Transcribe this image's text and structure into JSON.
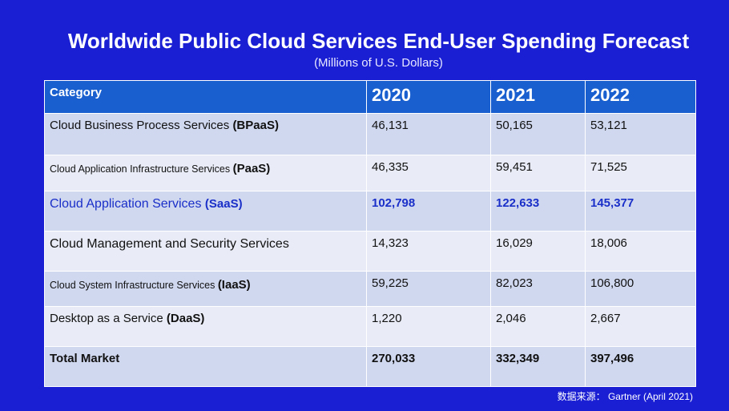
{
  "title": "Worldwide Public Cloud Services End-User Spending Forecast",
  "subtitle": "(Millions of U.S. Dollars)",
  "source": "数据来源： Gartner (April 2021)",
  "colors": {
    "background": "#1a1fd4",
    "header": "#1a5fcf",
    "row_odd": "#d0d8f0",
    "row_even": "#e9ecf7",
    "highlight_text": "#1a2fc8"
  },
  "chart_data": {
    "type": "table",
    "columns": [
      "Category",
      "2020",
      "2021",
      "2022"
    ],
    "rows": [
      {
        "name": "Cloud Business Process Services",
        "abbr": "(BPaaS)",
        "values": [
          "46,131",
          "50,165",
          "53,121"
        ]
      },
      {
        "name": "Cloud Application Infrastructure Services",
        "abbr": "(PaaS)",
        "values": [
          "46,335",
          "59,451",
          "71,525"
        ]
      },
      {
        "name": "Cloud Application Services",
        "abbr": "(SaaS)",
        "values": [
          "102,798",
          "122,633",
          "145,377"
        ]
      },
      {
        "name": "Cloud Management and Security Services",
        "abbr": "",
        "values": [
          "14,323",
          "16,029",
          "18,006"
        ]
      },
      {
        "name": "Cloud System Infrastructure Services",
        "abbr": "(IaaS)",
        "values": [
          "59,225",
          "82,023",
          "106,800"
        ]
      },
      {
        "name": "Desktop as a Service",
        "abbr": "(DaaS)",
        "values": [
          "1,220",
          "2,046",
          "2,667"
        ]
      },
      {
        "name": "Total Market",
        "abbr": "",
        "values": [
          "270,033",
          "332,349",
          "397,496"
        ]
      }
    ]
  }
}
